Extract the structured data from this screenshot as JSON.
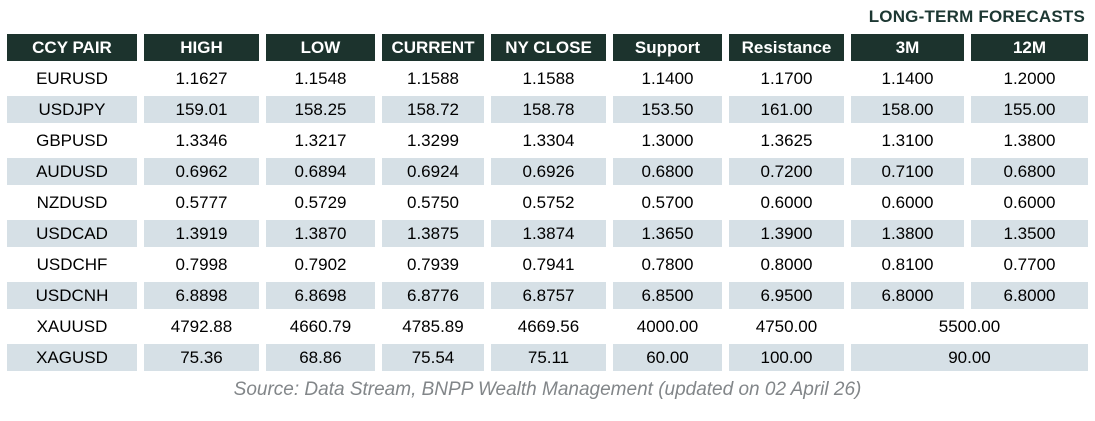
{
  "colors": {
    "header_bg": "#1c332d",
    "stripe_bg": "#d6e0e6",
    "title_color": "#1d3833",
    "source_color": "#828689",
    "cell_text": "#000000",
    "header_text": "#ffffff"
  },
  "chart_data": {
    "type": "table",
    "title": "LONG-TERM FORECASTS",
    "columns": [
      "CCY PAIR",
      "HIGH",
      "LOW",
      "CURRENT",
      "NY CLOSE",
      "Support",
      "Resistance",
      "3M",
      "12M"
    ],
    "rows": [
      {
        "cells": [
          "EURUSD",
          "1.1627",
          "1.1548",
          "1.1588",
          "1.1588",
          "1.1400",
          "1.1700",
          "1.1400",
          "1.2000"
        ],
        "merge_last": false
      },
      {
        "cells": [
          "USDJPY",
          "159.01",
          "158.25",
          "158.72",
          "158.78",
          "153.50",
          "161.00",
          "158.00",
          "155.00"
        ],
        "merge_last": false
      },
      {
        "cells": [
          "GBPUSD",
          "1.3346",
          "1.3217",
          "1.3299",
          "1.3304",
          "1.3000",
          "1.3625",
          "1.3100",
          "1.3800"
        ],
        "merge_last": false
      },
      {
        "cells": [
          "AUDUSD",
          "0.6962",
          "0.6894",
          "0.6924",
          "0.6926",
          "0.6800",
          "0.7200",
          "0.7100",
          "0.6800"
        ],
        "merge_last": false
      },
      {
        "cells": [
          "NZDUSD",
          "0.5777",
          "0.5729",
          "0.5750",
          "0.5752",
          "0.5700",
          "0.6000",
          "0.6000",
          "0.6000"
        ],
        "merge_last": false
      },
      {
        "cells": [
          "USDCAD",
          "1.3919",
          "1.3870",
          "1.3875",
          "1.3874",
          "1.3650",
          "1.3900",
          "1.3800",
          "1.3500"
        ],
        "merge_last": false
      },
      {
        "cells": [
          "USDCHF",
          "0.7998",
          "0.7902",
          "0.7939",
          "0.7941",
          "0.7800",
          "0.8000",
          "0.8100",
          "0.7700"
        ],
        "merge_last": false
      },
      {
        "cells": [
          "USDCNH",
          "6.8898",
          "6.8698",
          "6.8776",
          "6.8757",
          "6.8500",
          "6.9500",
          "6.8000",
          "6.8000"
        ],
        "merge_last": false
      },
      {
        "cells": [
          "XAUUSD",
          "4792.88",
          "4660.79",
          "4785.89",
          "4669.56",
          "4000.00",
          "4750.00",
          "5500.00"
        ],
        "merge_last": true
      },
      {
        "cells": [
          "XAGUSD",
          "75.36",
          "68.86",
          "75.54",
          "75.11",
          "60.00",
          "100.00",
          "90.00"
        ],
        "merge_last": true
      }
    ],
    "source": "Source: Data Stream, BNPP Wealth Management (updated on 02 April 26)",
    "layout": {
      "stripe_pattern": "alternating starting with white",
      "legend_position": "none",
      "grid": "cell-gap separators"
    }
  }
}
